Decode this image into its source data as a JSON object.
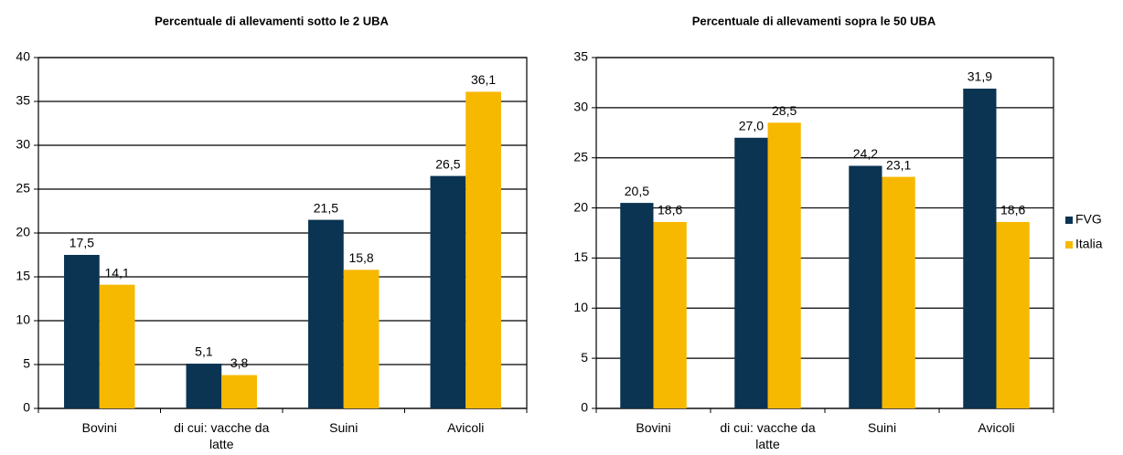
{
  "chart_data": [
    {
      "type": "bar",
      "title": "Percentuale di allevamenti sotto le 2 UBA",
      "categories": [
        "Bovini",
        "di cui: vacche da latte",
        "Suini",
        "Avicoli"
      ],
      "series": [
        {
          "name": "FVG",
          "color": "#0b3352",
          "values": [
            17.5,
            5.1,
            21.5,
            26.5
          ],
          "value_labels": [
            "17,5",
            "5,1",
            "21,5",
            "26,5"
          ]
        },
        {
          "name": "Italia",
          "color": "#f7b800",
          "values": [
            14.1,
            3.8,
            15.8,
            36.1
          ],
          "value_labels": [
            "14,1",
            "3,8",
            "15,8",
            "36,1"
          ]
        }
      ],
      "ylim": [
        0,
        40
      ],
      "yticks": [
        0,
        5,
        10,
        15,
        20,
        25,
        30,
        35,
        40
      ],
      "grid": true
    },
    {
      "type": "bar",
      "title": "Percentuale di allevamenti sopra le 50 UBA",
      "categories": [
        "Bovini",
        "di cui: vacche da latte",
        "Suini",
        "Avicoli"
      ],
      "series": [
        {
          "name": "FVG",
          "color": "#0b3352",
          "values": [
            20.5,
            27,
            24.2,
            31.9
          ],
          "value_labels": [
            "20,5",
            "27,0",
            "24,2",
            "31,9"
          ]
        },
        {
          "name": "Italia",
          "color": "#f7b800",
          "values": [
            18.6,
            28.5,
            23.1,
            18.6
          ],
          "value_labels": [
            "18,6",
            "28,5",
            "23,1",
            "18,6"
          ]
        }
      ],
      "ylim": [
        0,
        35
      ],
      "yticks": [
        0,
        5,
        10,
        15,
        20,
        25,
        30,
        35
      ],
      "grid": true,
      "legend": "right"
    }
  ]
}
